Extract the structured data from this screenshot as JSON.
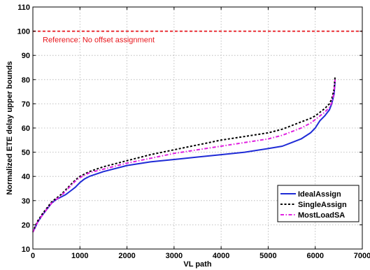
{
  "chart_data": {
    "type": "line",
    "xlabel": "VL path",
    "ylabel": "Normalized ETE delay upper bounds",
    "xlim": [
      0,
      7000
    ],
    "ylim": [
      10,
      110
    ],
    "xticks": [
      0,
      1000,
      2000,
      3000,
      4000,
      5000,
      6000,
      7000
    ],
    "yticks": [
      10,
      20,
      30,
      40,
      50,
      60,
      70,
      80,
      90,
      100,
      110
    ],
    "grid": true,
    "legend_position": "lower-right",
    "reference": {
      "y": 100,
      "label": "Reference: No offset assignment",
      "color": "#e8161c"
    },
    "series": [
      {
        "name": "IdealAssign",
        "color": "#1f2bd6",
        "style": "solid",
        "x": [
          0,
          50,
          100,
          200,
          300,
          400,
          500,
          600,
          700,
          800,
          900,
          1000,
          1100,
          1200,
          1500,
          2000,
          2500,
          3000,
          3500,
          4000,
          4500,
          5000,
          5300,
          5500,
          5700,
          5900,
          6000,
          6100,
          6200,
          6300,
          6350,
          6400,
          6420
        ],
        "y": [
          17,
          19,
          21,
          24,
          26.5,
          29,
          30.5,
          31.5,
          32.5,
          34,
          35.5,
          37.5,
          39,
          40,
          42,
          44.5,
          46,
          47,
          48,
          49,
          50,
          51.5,
          52.5,
          54,
          55.5,
          58,
          60,
          63,
          65,
          67.5,
          70,
          74,
          79
        ]
      },
      {
        "name": "SingleAssign",
        "color": "#000000",
        "style": "dashed",
        "x": [
          0,
          50,
          100,
          200,
          300,
          400,
          500,
          600,
          700,
          800,
          900,
          1000,
          1100,
          1200,
          1500,
          2000,
          2500,
          3000,
          3500,
          4000,
          4500,
          5000,
          5300,
          5500,
          5700,
          5900,
          6000,
          6100,
          6200,
          6300,
          6350,
          6400,
          6420
        ],
        "y": [
          17,
          19.5,
          21.5,
          24.5,
          27,
          29.5,
          31,
          32.5,
          34.5,
          36.5,
          38.5,
          40,
          41,
          42,
          44,
          46.5,
          49,
          51,
          53,
          55,
          56.5,
          58,
          59.5,
          61,
          62.5,
          64,
          65,
          66.5,
          68,
          70,
          72,
          76,
          81
        ]
      },
      {
        "name": "MostLoadSA",
        "color": "#e020e0",
        "style": "dashdot",
        "x": [
          0,
          50,
          100,
          200,
          300,
          400,
          500,
          600,
          700,
          800,
          900,
          1000,
          1100,
          1200,
          1500,
          2000,
          2500,
          3000,
          3500,
          4000,
          4500,
          5000,
          5300,
          5500,
          5700,
          5900,
          6000,
          6100,
          6200,
          6300,
          6350,
          6400,
          6420
        ],
        "y": [
          17,
          19,
          21,
          24,
          26.5,
          29,
          30.5,
          32,
          34,
          36,
          38,
          39.5,
          40.5,
          41.5,
          43,
          45.5,
          47.5,
          49.5,
          51,
          52.5,
          54,
          55.5,
          57,
          58.5,
          60,
          62,
          63.5,
          65,
          66.5,
          68.5,
          70.5,
          74.5,
          80
        ]
      }
    ]
  }
}
